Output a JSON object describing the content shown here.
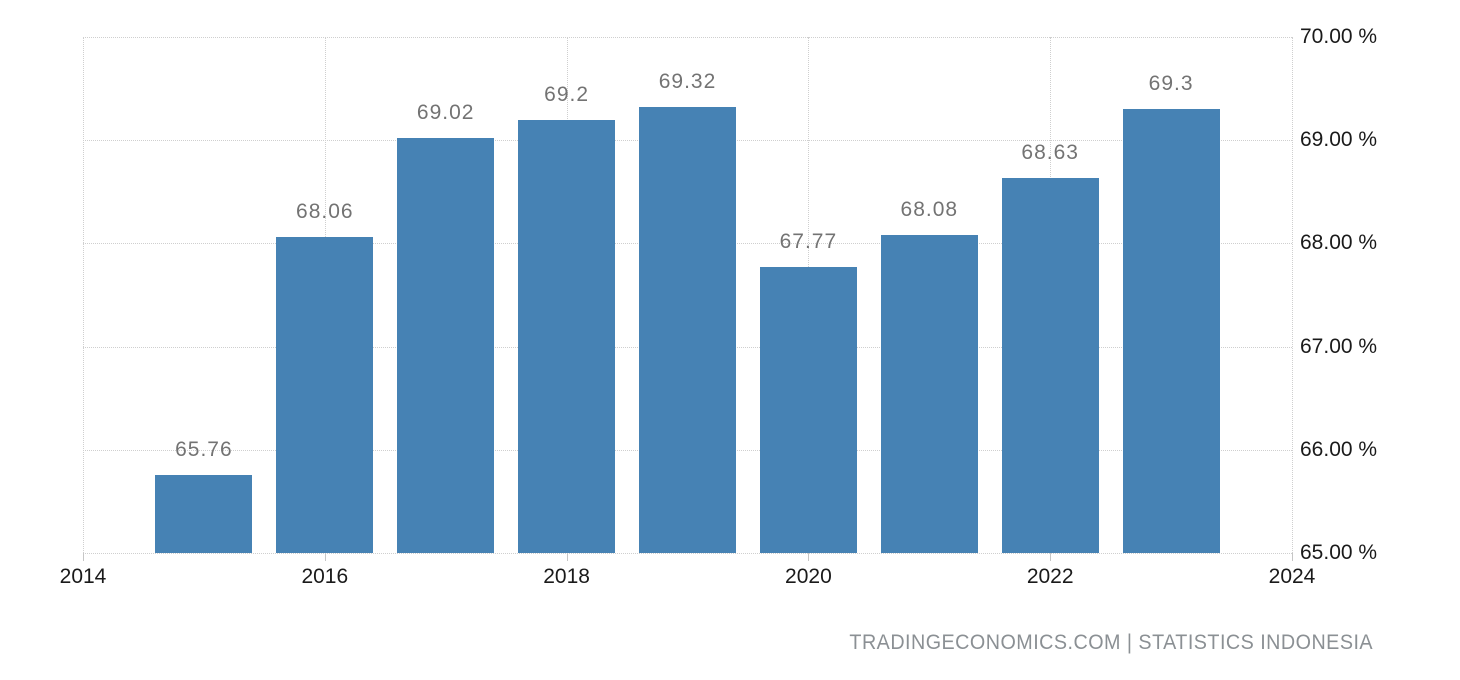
{
  "chart_data": {
    "type": "bar",
    "title": "",
    "xlabel": "",
    "ylabel": "",
    "points": [
      {
        "year": 2015,
        "value": 65.76,
        "label": "65.76"
      },
      {
        "year": 2016,
        "value": 68.06,
        "label": "68.06"
      },
      {
        "year": 2017,
        "value": 69.02,
        "label": "69.02"
      },
      {
        "year": 2018,
        "value": 69.2,
        "label": "69.2"
      },
      {
        "year": 2019,
        "value": 69.32,
        "label": "69.32"
      },
      {
        "year": 2020,
        "value": 67.77,
        "label": "67.77"
      },
      {
        "year": 2021,
        "value": 68.08,
        "label": "68.08"
      },
      {
        "year": 2022,
        "value": 68.63,
        "label": "68.63"
      },
      {
        "year": 2023,
        "value": 69.3,
        "label": "69.3"
      }
    ],
    "x_ticks": [
      {
        "year": 2014,
        "label": "2014"
      },
      {
        "year": 2016,
        "label": "2016"
      },
      {
        "year": 2018,
        "label": "2018"
      },
      {
        "year": 2020,
        "label": "2020"
      },
      {
        "year": 2022,
        "label": "2022"
      },
      {
        "year": 2024,
        "label": "2024"
      }
    ],
    "y_ticks": [
      {
        "value": 70,
        "label": "70.00 %"
      },
      {
        "value": 69,
        "label": "69.00 %"
      },
      {
        "value": 68,
        "label": "68.00 %"
      },
      {
        "value": 67,
        "label": "67.00 %"
      },
      {
        "value": 66,
        "label": "66.00 %"
      },
      {
        "value": 65,
        "label": "65.00 %"
      }
    ],
    "xlim": [
      2014,
      2024
    ],
    "ylim": [
      65,
      70
    ],
    "grid": "dotted",
    "legend": "none",
    "colors": {
      "bar": "#4682b4",
      "gridline": "#cfcfcf",
      "tick": "#c6c6c6",
      "axis_text": "#1a1a1a",
      "value_label": "#737373",
      "attribution_text": "#8b9094",
      "background": "#ffffff"
    }
  },
  "footer": {
    "attribution": "TRADINGECONOMICS.COM | STATISTICS INDONESIA"
  }
}
